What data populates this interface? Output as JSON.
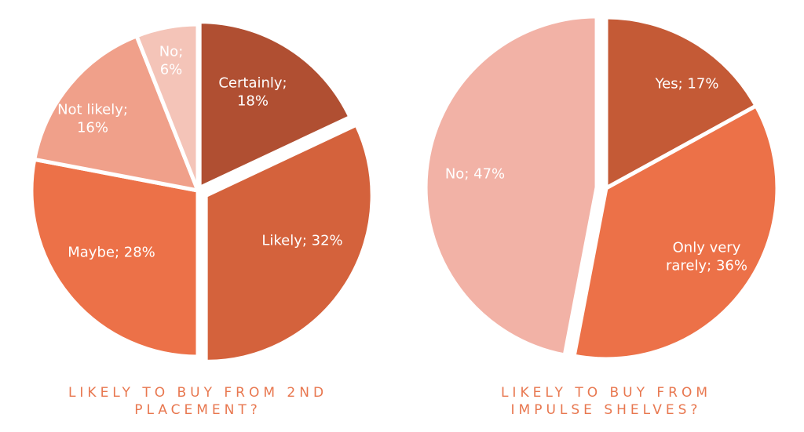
{
  "chart_data": [
    {
      "type": "pie",
      "title": "LIKELY TO BUY FROM 2ND PLACEMENT?",
      "categories": [
        "Certainly;",
        "Likely;",
        "Maybe;",
        "Not likely;",
        "No;"
      ],
      "values": [
        18,
        32,
        28,
        16,
        6
      ],
      "value_labels": [
        "18%",
        "32%",
        "28%",
        "16%",
        "6%"
      ],
      "colors": [
        "#b04f32",
        "#d4623c",
        "#ec7148",
        "#f0a08a",
        "#f4c4b8"
      ]
    },
    {
      "type": "pie",
      "title": "LIKELY TO BUY FROM IMPULSE SHELVES?",
      "categories": [
        "Yes;",
        "Only very rarely;",
        "No;"
      ],
      "values": [
        17,
        36,
        47
      ],
      "value_labels": [
        "17%",
        "36%",
        "47%"
      ],
      "colors": [
        "#c45a36",
        "#ec7148",
        "#f2b2a6"
      ]
    }
  ]
}
